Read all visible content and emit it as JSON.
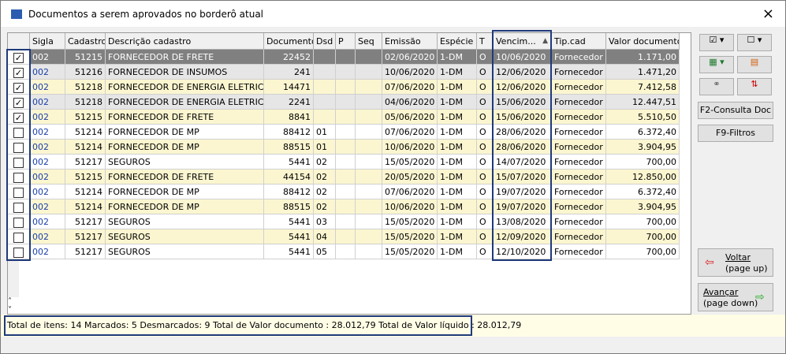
{
  "window": {
    "title": "Documentos a serem aprovados no borderô atual",
    "close": "×"
  },
  "grid": {
    "columns": [
      "Sigla",
      "Cadastro",
      "Descrição cadastro",
      "Documento",
      "Dsd",
      "P",
      "Seq",
      "Emissão",
      "Espécie",
      "T",
      "Vencim...",
      "Tip.cad",
      "Valor documento"
    ],
    "checked": [
      true,
      true,
      true,
      true,
      true,
      false,
      false,
      false,
      false,
      false,
      false,
      false,
      false,
      false
    ],
    "rows": [
      [
        "002",
        "51215",
        "FORNECEDOR DE FRETE",
        "22452",
        null,
        null,
        null,
        "02/06/2020",
        "1-DM",
        "O",
        "10/06/2020",
        "Fornecedor",
        "1.171,00"
      ],
      [
        "002",
        "51216",
        "FORNECEDOR DE INSUMOS",
        "241",
        null,
        null,
        null,
        "10/06/2020",
        "1-DM",
        "O",
        "12/06/2020",
        "Fornecedor",
        "1.471,20"
      ],
      [
        "002",
        "51218",
        "FORNECEDOR DE ENERGIA ELETRICA",
        "14471",
        null,
        null,
        null,
        "07/06/2020",
        "1-DM",
        "O",
        "12/06/2020",
        "Fornecedor",
        "7.412,58"
      ],
      [
        "002",
        "51218",
        "FORNECEDOR DE ENERGIA ELETRICA",
        "2241",
        null,
        null,
        null,
        "04/06/2020",
        "1-DM",
        "O",
        "15/06/2020",
        "Fornecedor",
        "12.447,51"
      ],
      [
        "002",
        "51215",
        "FORNECEDOR DE FRETE",
        "8841",
        null,
        null,
        null,
        "05/06/2020",
        "1-DM",
        "O",
        "15/06/2020",
        "Fornecedor",
        "5.510,50"
      ],
      [
        "002",
        "51214",
        "FORNECEDOR DE MP",
        "88412",
        "01",
        null,
        null,
        "07/06/2020",
        "1-DM",
        "O",
        "28/06/2020",
        "Fornecedor",
        "6.372,40"
      ],
      [
        "002",
        "51214",
        "FORNECEDOR DE MP",
        "88515",
        "01",
        null,
        null,
        "10/06/2020",
        "1-DM",
        "O",
        "28/06/2020",
        "Fornecedor",
        "3.904,95"
      ],
      [
        "002",
        "51217",
        "SEGUROS",
        "5441",
        "02",
        null,
        null,
        "15/05/2020",
        "1-DM",
        "O",
        "14/07/2020",
        "Fornecedor",
        "700,00"
      ],
      [
        "002",
        "51215",
        "FORNECEDOR DE FRETE",
        "44154",
        "02",
        null,
        null,
        "20/05/2020",
        "1-DM",
        "O",
        "15/07/2020",
        "Fornecedor",
        "12.850,00"
      ],
      [
        "002",
        "51214",
        "FORNECEDOR DE MP",
        "88412",
        "02",
        null,
        null,
        "07/06/2020",
        "1-DM",
        "O",
        "19/07/2020",
        "Fornecedor",
        "6.372,40"
      ],
      [
        "002",
        "51214",
        "FORNECEDOR DE MP",
        "88515",
        "02",
        null,
        null,
        "10/06/2020",
        "1-DM",
        "O",
        "19/07/2020",
        "Fornecedor",
        "3.904,95"
      ],
      [
        "002",
        "51217",
        "SEGUROS",
        "5441",
        "03",
        null,
        null,
        "15/05/2020",
        "1-DM",
        "O",
        "13/08/2020",
        "Fornecedor",
        "700,00"
      ],
      [
        "002",
        "51217",
        "SEGUROS",
        "5441",
        "04",
        null,
        null,
        "15/05/2020",
        "1-DM",
        "O",
        "12/09/2020",
        "Fornecedor",
        "700,00"
      ],
      [
        "002",
        "51217",
        "SEGUROS",
        "5441",
        "05",
        null,
        null,
        "15/05/2020",
        "1-DM",
        "O",
        "12/10/2020",
        "Fornecedor",
        "700,00"
      ]
    ]
  },
  "buttons": {
    "consulta": "F2-Consulta Doc",
    "filtros": "F9-Filtros",
    "voltar": "Voltar",
    "voltar_key": "(page up)",
    "avancar": "Avançar",
    "avancar_key": "(page down)"
  },
  "footer": "Total de itens: 14 Marcados: 5 Desmarcados: 9 Total de Valor documento : 28.012,79 Total de Valor líquido : 28.012,79"
}
